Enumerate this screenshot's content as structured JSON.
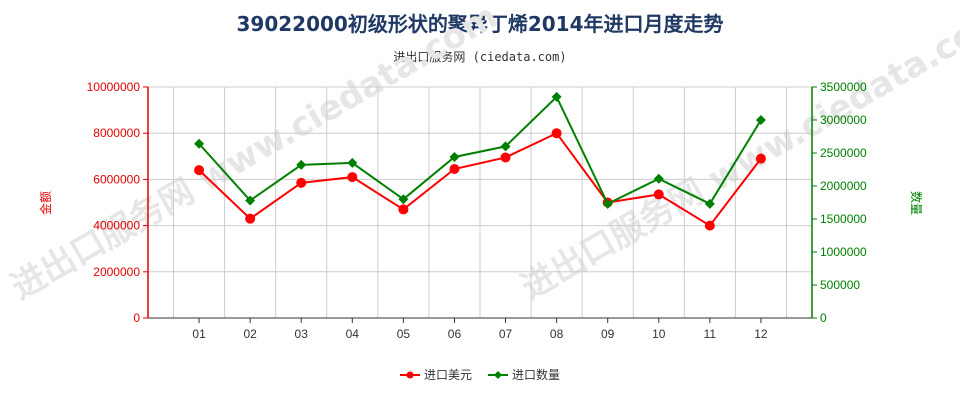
{
  "title": "39022000初级形状的聚异丁烯2014年进口月度走势",
  "subtitle": "进出口服务网 (ciedata.com)",
  "watermark": "进出口服务网 www.ciedata.com",
  "chart_data": {
    "type": "line",
    "categories": [
      "01",
      "02",
      "03",
      "04",
      "05",
      "06",
      "07",
      "08",
      "09",
      "10",
      "11",
      "12"
    ],
    "series": [
      {
        "name": "进口美元",
        "axis": "left",
        "color": "#ff0000",
        "values": [
          6400000,
          4300000,
          5850000,
          6100000,
          4700000,
          6450000,
          6950000,
          8000000,
          5000000,
          5350000,
          4000000,
          6900000
        ]
      },
      {
        "name": "进口数量",
        "axis": "right",
        "color": "#008000",
        "values": [
          2640000,
          1780000,
          2320000,
          2350000,
          1800000,
          2440000,
          2600000,
          3350000,
          1730000,
          2110000,
          1730000,
          3000000
        ]
      }
    ],
    "ylabel_left": "金额",
    "ylabel_right": "数量",
    "ylim_left": [
      0,
      10000000
    ],
    "ylim_right": [
      0,
      3500000
    ],
    "yticks_left": [
      "0",
      "2000000",
      "4000000",
      "6000000",
      "8000000",
      "10000000"
    ],
    "yticks_right": [
      "0",
      "500000",
      "1000000",
      "1500000",
      "2000000",
      "2500000",
      "3000000",
      "3500000"
    ],
    "grid": true,
    "legend_position": "bottom-center"
  }
}
